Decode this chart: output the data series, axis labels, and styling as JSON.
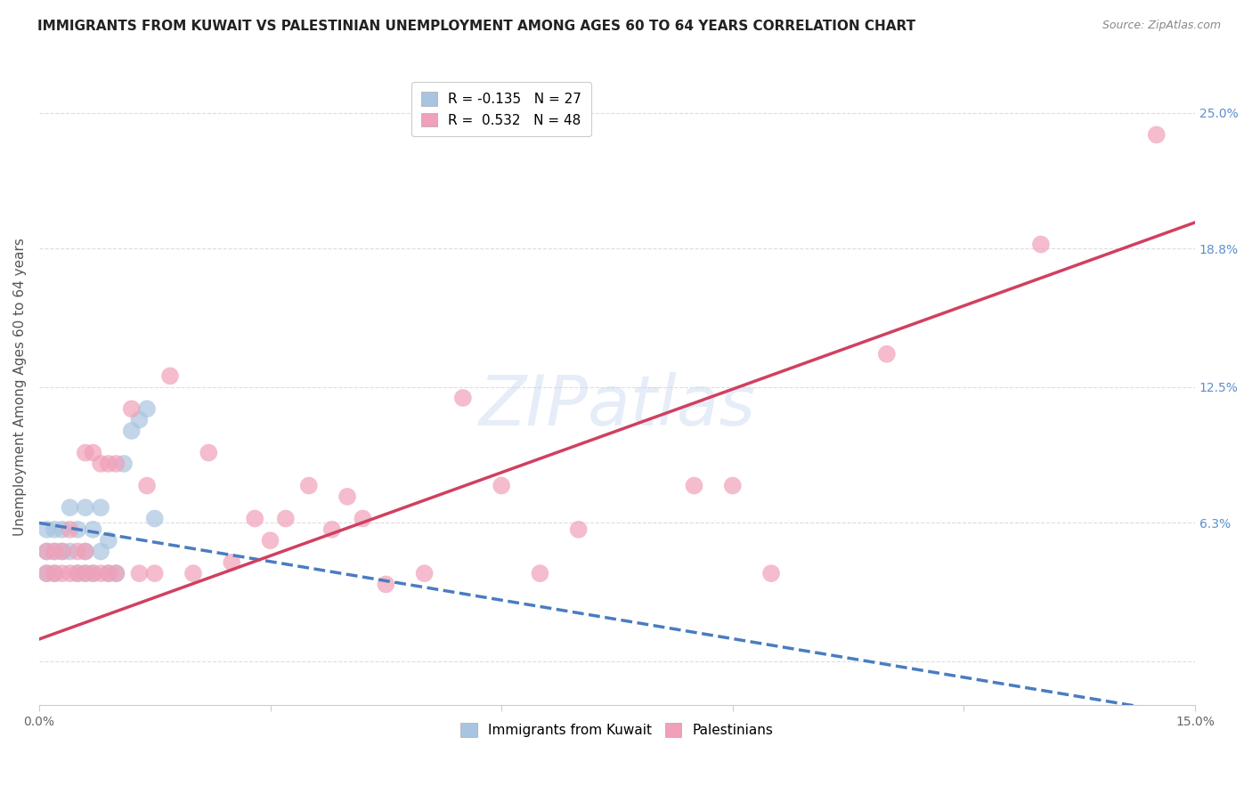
{
  "title": "IMMIGRANTS FROM KUWAIT VS PALESTINIAN UNEMPLOYMENT AMONG AGES 60 TO 64 YEARS CORRELATION CHART",
  "source": "Source: ZipAtlas.com",
  "ylabel": "Unemployment Among Ages 60 to 64 years",
  "xlim": [
    0.0,
    0.15
  ],
  "ylim": [
    -0.02,
    0.27
  ],
  "xticks": [
    0.0,
    0.03,
    0.06,
    0.09,
    0.12,
    0.15
  ],
  "xticklabels": [
    "0.0%",
    "",
    "",
    "",
    "",
    "15.0%"
  ],
  "ytick_right_values": [
    0.0,
    0.063,
    0.125,
    0.188,
    0.25
  ],
  "ytick_right_labels": [
    "",
    "6.3%",
    "12.5%",
    "18.8%",
    "25.0%"
  ],
  "blue_R": -0.135,
  "blue_N": 27,
  "pink_R": 0.532,
  "pink_N": 48,
  "blue_color": "#a8c4e0",
  "pink_color": "#f0a0b8",
  "blue_line_color": "#4a7cc0",
  "pink_line_color": "#d04060",
  "watermark": "ZIPatlas",
  "blue_scatter_x": [
    0.001,
    0.001,
    0.001,
    0.002,
    0.002,
    0.002,
    0.003,
    0.003,
    0.004,
    0.004,
    0.005,
    0.005,
    0.006,
    0.006,
    0.006,
    0.007,
    0.007,
    0.008,
    0.008,
    0.009,
    0.009,
    0.01,
    0.011,
    0.012,
    0.013,
    0.014,
    0.015
  ],
  "blue_scatter_y": [
    0.04,
    0.05,
    0.06,
    0.04,
    0.05,
    0.06,
    0.05,
    0.06,
    0.05,
    0.07,
    0.04,
    0.06,
    0.04,
    0.05,
    0.07,
    0.04,
    0.06,
    0.05,
    0.07,
    0.04,
    0.055,
    0.04,
    0.09,
    0.105,
    0.11,
    0.115,
    0.065
  ],
  "pink_scatter_x": [
    0.001,
    0.001,
    0.002,
    0.002,
    0.003,
    0.003,
    0.004,
    0.004,
    0.005,
    0.005,
    0.006,
    0.006,
    0.006,
    0.007,
    0.007,
    0.008,
    0.008,
    0.009,
    0.009,
    0.01,
    0.01,
    0.012,
    0.013,
    0.014,
    0.015,
    0.017,
    0.02,
    0.022,
    0.025,
    0.028,
    0.03,
    0.032,
    0.035,
    0.038,
    0.04,
    0.042,
    0.045,
    0.05,
    0.055,
    0.06,
    0.065,
    0.07,
    0.085,
    0.09,
    0.095,
    0.11,
    0.13,
    0.145
  ],
  "pink_scatter_y": [
    0.04,
    0.05,
    0.04,
    0.05,
    0.04,
    0.05,
    0.04,
    0.06,
    0.04,
    0.05,
    0.04,
    0.05,
    0.095,
    0.04,
    0.095,
    0.04,
    0.09,
    0.04,
    0.09,
    0.04,
    0.09,
    0.115,
    0.04,
    0.08,
    0.04,
    0.13,
    0.04,
    0.095,
    0.045,
    0.065,
    0.055,
    0.065,
    0.08,
    0.06,
    0.075,
    0.065,
    0.035,
    0.04,
    0.12,
    0.08,
    0.04,
    0.06,
    0.08,
    0.08,
    0.04,
    0.14,
    0.19,
    0.24
  ],
  "grid_color": "#dddddd",
  "background_color": "#ffffff",
  "title_fontsize": 11,
  "axis_label_fontsize": 11,
  "tick_fontsize": 10,
  "legend_fontsize": 11,
  "blue_line_x0": 0.0,
  "blue_line_y0": 0.063,
  "blue_line_x1": 0.15,
  "blue_line_y1": -0.025,
  "pink_line_x0": 0.0,
  "pink_line_y0": 0.01,
  "pink_line_x1": 0.15,
  "pink_line_y1": 0.2
}
